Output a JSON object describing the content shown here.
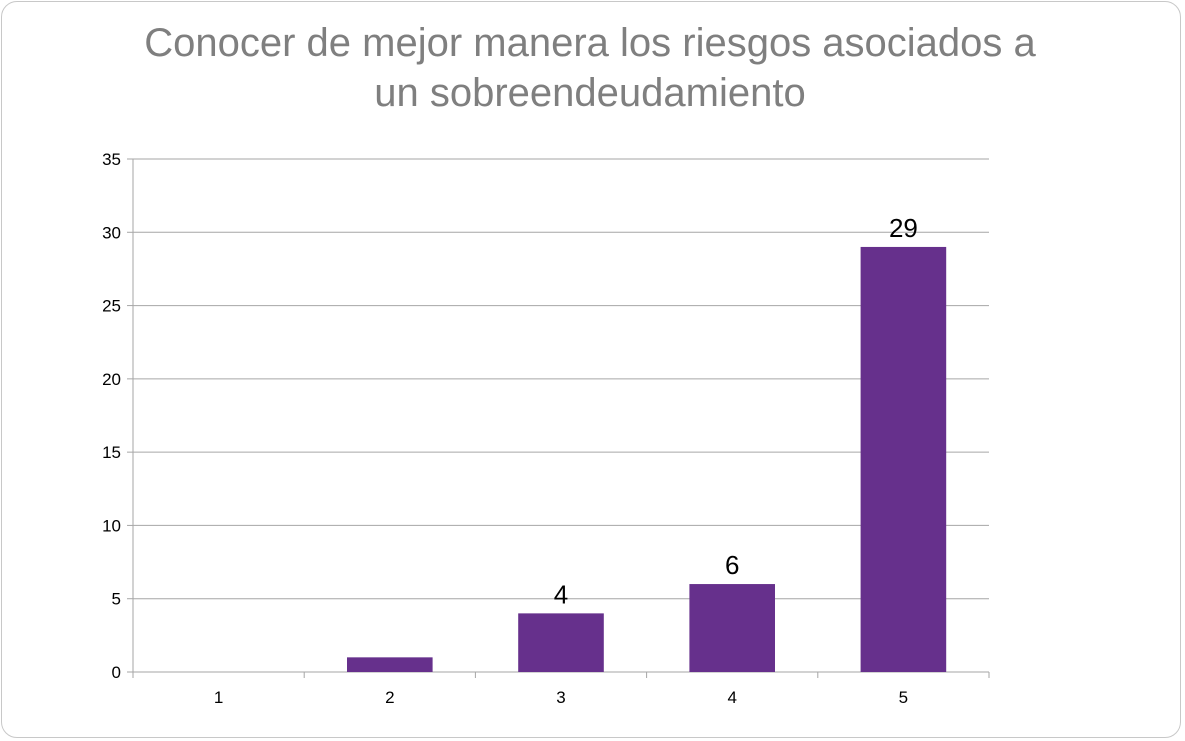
{
  "chart_data": {
    "type": "bar",
    "title_lines": [
      "Conocer de mejor manera los riesgos asociados a",
      "un sobreendeudamiento"
    ],
    "categories": [
      "1",
      "2",
      "3",
      "4",
      "5"
    ],
    "values": [
      0,
      1,
      4,
      6,
      29
    ],
    "data_labels": [
      "",
      "",
      "4",
      "6",
      "29"
    ],
    "ylim": [
      0,
      35
    ],
    "yticks": [
      "0",
      "5",
      "10",
      "15",
      "20",
      "25",
      "30",
      "35"
    ],
    "xlabel": "",
    "ylabel": "",
    "grid": true,
    "legend": "none",
    "bar_color": "#66308c",
    "grid_color": "#a6a6a6"
  }
}
